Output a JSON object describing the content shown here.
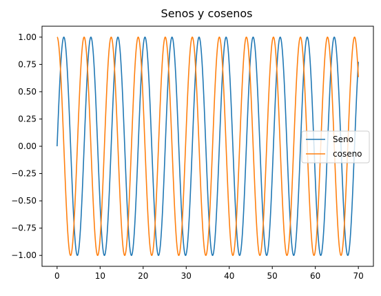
{
  "chart_data": {
    "type": "line",
    "title": "Senos y cosenos",
    "xlabel": "",
    "ylabel": "",
    "xlim": [
      -3.5,
      73.5
    ],
    "ylim": [
      -1.1,
      1.1
    ],
    "x_range": [
      0,
      70
    ],
    "x_ticks": [
      0,
      10,
      20,
      30,
      40,
      50,
      60,
      70
    ],
    "x_tick_labels": [
      "0",
      "10",
      "20",
      "30",
      "40",
      "50",
      "60",
      "70"
    ],
    "y_ticks": [
      1.0,
      0.75,
      0.5,
      0.25,
      0.0,
      -0.25,
      -0.5,
      -0.75,
      -1.0
    ],
    "y_tick_labels": [
      "1.00",
      "0.75",
      "0.50",
      "0.25",
      "0.00",
      "−0.25",
      "−0.50",
      "−0.75",
      "−1.00"
    ],
    "grid": false,
    "legend_position": "center-right",
    "series": [
      {
        "name": "Seno",
        "function": "sin(x)",
        "color": "#1f77b4"
      },
      {
        "name": "coseno",
        "function": "cos(x)",
        "color": "#ff7f0e"
      }
    ]
  }
}
